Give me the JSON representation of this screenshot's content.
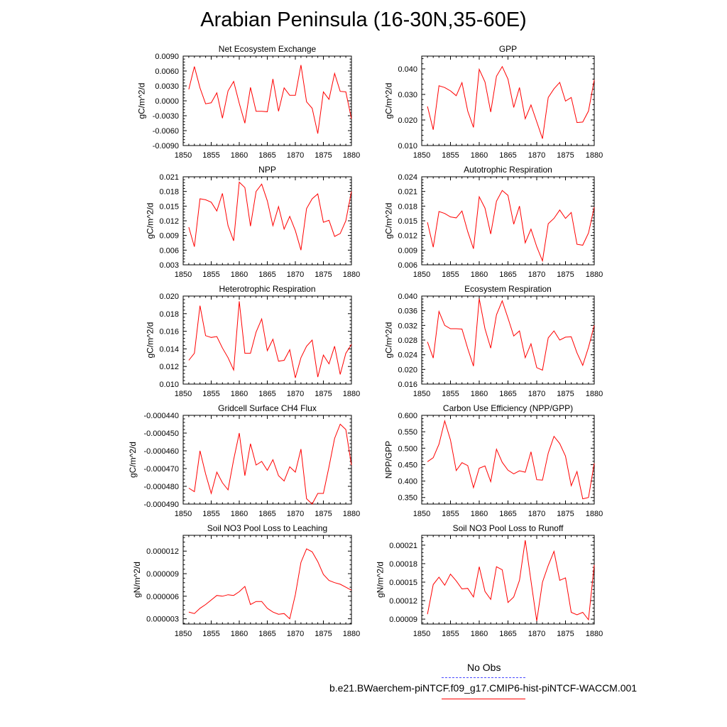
{
  "page_title": "Arabian Peninsula (16-30N,35-60E)",
  "legend": {
    "obs_label": "No Obs",
    "obs_color": "#4a4aff",
    "model_label": "b.e21.BWaerchem-piNTCF.f09_g17.CMIP6-hist-piNTCF-WACCM.001",
    "model_color": "#ff0000"
  },
  "chart_data": [
    {
      "type": "line",
      "title": "Net Ecosystem Exchange",
      "ylabel": "gC/m^2/d",
      "xlim": [
        1850,
        1880
      ],
      "ylim": [
        -0.009,
        0.009
      ],
      "xticks": [
        1850,
        1855,
        1860,
        1865,
        1870,
        1875,
        1880
      ],
      "yticks": [
        -0.009,
        -0.006,
        -0.003,
        0.0,
        0.003,
        0.006,
        0.009
      ],
      "yticklabels": [
        "-0.0090",
        "-0.0060",
        "-0.0030",
        "0.0000",
        "0.0030",
        "0.0060",
        "0.0090"
      ],
      "series": [
        {
          "color": "#ff0000",
          "x": [
            1851,
            1852,
            1853,
            1854,
            1855,
            1856,
            1857,
            1858,
            1859,
            1860,
            1861,
            1862,
            1863,
            1864,
            1865,
            1866,
            1867,
            1868,
            1869,
            1870,
            1871,
            1872,
            1873,
            1874,
            1875,
            1876,
            1877,
            1878,
            1879,
            1880
          ],
          "y": [
            0.0023,
            0.0069,
            0.0026,
            -0.0006,
            -0.0004,
            0.0016,
            -0.0035,
            0.002,
            0.0039,
            -0.0005,
            -0.0045,
            0.0027,
            -0.0021,
            -0.0021,
            -0.0022,
            0.0044,
            -0.0021,
            0.0026,
            0.0011,
            0.0011,
            0.0072,
            -0.0002,
            -0.0015,
            -0.0066,
            0.0018,
            0.0003,
            0.0055,
            0.0019,
            0.0018,
            -0.0036
          ]
        }
      ]
    },
    {
      "type": "line",
      "title": "GPP",
      "ylabel": "gC/m^2/d",
      "xlim": [
        1850,
        1880
      ],
      "ylim": [
        0.01,
        0.045
      ],
      "xticks": [
        1850,
        1855,
        1860,
        1865,
        1870,
        1875,
        1880
      ],
      "yticks": [
        0.01,
        0.02,
        0.03,
        0.04
      ],
      "yticklabels": [
        "0.010",
        "0.020",
        "0.030",
        "0.040"
      ],
      "series": [
        {
          "color": "#ff0000",
          "x": [
            1851,
            1852,
            1853,
            1854,
            1855,
            1856,
            1857,
            1858,
            1859,
            1860,
            1861,
            1862,
            1863,
            1864,
            1865,
            1866,
            1867,
            1868,
            1869,
            1870,
            1871,
            1872,
            1873,
            1874,
            1875,
            1876,
            1877,
            1878,
            1879,
            1880
          ],
          "y": [
            0.0253,
            0.0162,
            0.0334,
            0.0327,
            0.0314,
            0.0295,
            0.0346,
            0.0235,
            0.0171,
            0.0398,
            0.0349,
            0.0231,
            0.0371,
            0.0409,
            0.036,
            0.0249,
            0.0327,
            0.0205,
            0.0259,
            0.0193,
            0.0127,
            0.0288,
            0.0322,
            0.0347,
            0.0274,
            0.0288,
            0.019,
            0.0192,
            0.0235,
            0.0357
          ]
        }
      ]
    },
    {
      "type": "line",
      "title": "NPP",
      "ylabel": "gC/m^2/d",
      "xlim": [
        1850,
        1880
      ],
      "ylim": [
        0.003,
        0.021
      ],
      "xticks": [
        1850,
        1855,
        1860,
        1865,
        1870,
        1875,
        1880
      ],
      "yticks": [
        0.003,
        0.006,
        0.009,
        0.012,
        0.015,
        0.018,
        0.021
      ],
      "yticklabels": [
        "0.003",
        "0.006",
        "0.009",
        "0.012",
        "0.015",
        "0.018",
        "0.021"
      ],
      "series": [
        {
          "color": "#ff0000",
          "x": [
            1851,
            1852,
            1853,
            1854,
            1855,
            1856,
            1857,
            1858,
            1859,
            1860,
            1861,
            1862,
            1863,
            1864,
            1865,
            1866,
            1867,
            1868,
            1869,
            1870,
            1871,
            1872,
            1873,
            1874,
            1875,
            1876,
            1877,
            1878,
            1879,
            1880
          ],
          "y": [
            0.0107,
            0.0067,
            0.0165,
            0.0163,
            0.0158,
            0.014,
            0.0176,
            0.011,
            0.0079,
            0.0199,
            0.0188,
            0.0109,
            0.018,
            0.0195,
            0.0161,
            0.011,
            0.0149,
            0.0103,
            0.0129,
            0.01,
            0.006,
            0.0145,
            0.0165,
            0.0175,
            0.0117,
            0.0121,
            0.0088,
            0.0094,
            0.012,
            0.018
          ]
        }
      ]
    },
    {
      "type": "line",
      "title": "Autotrophic Respiration",
      "ylabel": "gC/m^2/d",
      "xlim": [
        1850,
        1880
      ],
      "ylim": [
        0.006,
        0.024
      ],
      "xticks": [
        1850,
        1855,
        1860,
        1865,
        1870,
        1875,
        1880
      ],
      "yticks": [
        0.006,
        0.009,
        0.012,
        0.015,
        0.018,
        0.021,
        0.024
      ],
      "yticklabels": [
        "0.006",
        "0.009",
        "0.012",
        "0.015",
        "0.018",
        "0.021",
        "0.024"
      ],
      "series": [
        {
          "color": "#ff0000",
          "x": [
            1851,
            1852,
            1853,
            1854,
            1855,
            1856,
            1857,
            1858,
            1859,
            1860,
            1861,
            1862,
            1863,
            1864,
            1865,
            1866,
            1867,
            1868,
            1869,
            1870,
            1871,
            1872,
            1873,
            1874,
            1875,
            1876,
            1877,
            1878,
            1879,
            1880
          ],
          "y": [
            0.0147,
            0.0096,
            0.0169,
            0.0165,
            0.0158,
            0.0156,
            0.017,
            0.0128,
            0.0093,
            0.0199,
            0.0176,
            0.0123,
            0.019,
            0.0212,
            0.0202,
            0.0143,
            0.018,
            0.0105,
            0.0133,
            0.0097,
            0.0068,
            0.0144,
            0.0155,
            0.0172,
            0.0155,
            0.0167,
            0.0102,
            0.01,
            0.0125,
            0.0178
          ]
        }
      ]
    },
    {
      "type": "line",
      "title": "Heterotrophic Respiration",
      "ylabel": "gC/m^2/d",
      "xlim": [
        1850,
        1880
      ],
      "ylim": [
        0.01,
        0.02
      ],
      "xticks": [
        1850,
        1855,
        1860,
        1865,
        1870,
        1875,
        1880
      ],
      "yticks": [
        0.01,
        0.012,
        0.014,
        0.016,
        0.018,
        0.02
      ],
      "yticklabels": [
        "0.010",
        "0.012",
        "0.014",
        "0.016",
        "0.018",
        "0.020"
      ],
      "series": [
        {
          "color": "#ff0000",
          "x": [
            1851,
            1852,
            1853,
            1854,
            1855,
            1856,
            1857,
            1858,
            1859,
            1860,
            1861,
            1862,
            1863,
            1864,
            1865,
            1866,
            1867,
            1868,
            1869,
            1870,
            1871,
            1872,
            1873,
            1874,
            1875,
            1876,
            1877,
            1878,
            1879,
            1880
          ],
          "y": [
            0.0127,
            0.0135,
            0.0189,
            0.0155,
            0.0153,
            0.0154,
            0.0141,
            0.013,
            0.0116,
            0.0194,
            0.0135,
            0.0135,
            0.0159,
            0.0174,
            0.0138,
            0.0151,
            0.0126,
            0.0127,
            0.0139,
            0.0107,
            0.013,
            0.0143,
            0.015,
            0.0108,
            0.0133,
            0.0123,
            0.0143,
            0.0111,
            0.0135,
            0.0145
          ]
        }
      ]
    },
    {
      "type": "line",
      "title": "Ecosystem Respiration",
      "ylabel": "gC/m^2/d",
      "xlim": [
        1850,
        1880
      ],
      "ylim": [
        0.016,
        0.04
      ],
      "xticks": [
        1850,
        1855,
        1860,
        1865,
        1870,
        1875,
        1880
      ],
      "yticks": [
        0.016,
        0.02,
        0.024,
        0.028,
        0.032,
        0.036,
        0.04
      ],
      "yticklabels": [
        "0.016",
        "0.020",
        "0.024",
        "0.028",
        "0.032",
        "0.036",
        "0.040"
      ],
      "series": [
        {
          "color": "#ff0000",
          "x": [
            1851,
            1852,
            1853,
            1854,
            1855,
            1856,
            1857,
            1858,
            1859,
            1860,
            1861,
            1862,
            1863,
            1864,
            1865,
            1866,
            1867,
            1868,
            1869,
            1870,
            1871,
            1872,
            1873,
            1874,
            1875,
            1876,
            1877,
            1878,
            1879,
            1880
          ],
          "y": [
            0.0275,
            0.0231,
            0.0358,
            0.032,
            0.0311,
            0.0311,
            0.031,
            0.0257,
            0.0209,
            0.0393,
            0.0311,
            0.0258,
            0.0349,
            0.0387,
            0.034,
            0.0291,
            0.0305,
            0.0232,
            0.027,
            0.0205,
            0.0198,
            0.0286,
            0.0305,
            0.028,
            0.0288,
            0.0289,
            0.0245,
            0.0211,
            0.026,
            0.032
          ]
        }
      ]
    },
    {
      "type": "line",
      "title": "Gridcell Surface CH4 Flux",
      "ylabel": "gC/m^2/d",
      "xlim": [
        1850,
        1880
      ],
      "ylim": [
        -0.00049,
        -0.00044
      ],
      "xticks": [
        1850,
        1855,
        1860,
        1865,
        1870,
        1875,
        1880
      ],
      "yticks": [
        -0.00049,
        -0.00048,
        -0.00047,
        -0.00046,
        -0.00045,
        -0.00044
      ],
      "yticklabels": [
        "-0.000490",
        "-0.000480",
        "-0.000470",
        "-0.000460",
        "-0.000450",
        "-0.000440"
      ],
      "series": [
        {
          "color": "#ff0000",
          "x": [
            1851,
            1852,
            1853,
            1854,
            1855,
            1856,
            1857,
            1858,
            1859,
            1860,
            1861,
            1862,
            1863,
            1864,
            1865,
            1866,
            1867,
            1868,
            1869,
            1870,
            1871,
            1872,
            1873,
            1874,
            1875,
            1876,
            1877,
            1878,
            1879,
            1880
          ],
          "y": [
            -0.000481,
            -0.000483,
            -0.00046,
            -0.000473,
            -0.000484,
            -0.000472,
            -0.000478,
            -0.000482,
            -0.000465,
            -0.00045,
            -0.000474,
            -0.000456,
            -0.000468,
            -0.000466,
            -0.000471,
            -0.000465,
            -0.000474,
            -0.000477,
            -0.000469,
            -0.000472,
            -0.000459,
            -0.000487,
            -0.00049,
            -0.000484,
            -0.000484,
            -0.000469,
            -0.000453,
            -0.000445,
            -0.000448,
            -0.000468
          ]
        }
      ]
    },
    {
      "type": "line",
      "title": "Carbon Use Efficiency (NPP/GPP)",
      "ylabel": "NPP/GPP",
      "xlim": [
        1850,
        1880
      ],
      "ylim": [
        0.33,
        0.6
      ],
      "xticks": [
        1850,
        1855,
        1860,
        1865,
        1870,
        1875,
        1880
      ],
      "yticks": [
        0.35,
        0.4,
        0.45,
        0.5,
        0.55,
        0.6
      ],
      "yticklabels": [
        "0.350",
        "0.400",
        "0.450",
        "0.500",
        "0.550",
        "0.600"
      ],
      "series": [
        {
          "color": "#ff0000",
          "x": [
            1851,
            1852,
            1853,
            1854,
            1855,
            1856,
            1857,
            1858,
            1859,
            1860,
            1861,
            1862,
            1863,
            1864,
            1865,
            1866,
            1867,
            1868,
            1869,
            1870,
            1871,
            1872,
            1873,
            1874,
            1875,
            1876,
            1877,
            1878,
            1879,
            1880
          ],
          "y": [
            0.459,
            0.471,
            0.512,
            0.583,
            0.525,
            0.432,
            0.456,
            0.447,
            0.38,
            0.439,
            0.446,
            0.398,
            0.497,
            0.457,
            0.433,
            0.422,
            0.431,
            0.427,
            0.489,
            0.404,
            0.403,
            0.485,
            0.536,
            0.514,
            0.476,
            0.386,
            0.429,
            0.346,
            0.35,
            0.454
          ]
        }
      ]
    },
    {
      "type": "line",
      "title": "Soil NO3 Pool Loss to Leaching",
      "ylabel": "gN/m^2/d",
      "xlim": [
        1850,
        1880
      ],
      "ylim": [
        2.3e-06,
        1.41e-05
      ],
      "xticks": [
        1850,
        1855,
        1860,
        1865,
        1870,
        1875,
        1880
      ],
      "yticks": [
        3e-06,
        6e-06,
        9e-06,
        1.2e-05
      ],
      "yticklabels": [
        "0.000003",
        "0.000006",
        "0.000009",
        "0.000012"
      ],
      "series": [
        {
          "color": "#ff0000",
          "x": [
            1851,
            1852,
            1853,
            1854,
            1855,
            1856,
            1857,
            1858,
            1859,
            1860,
            1861,
            1862,
            1863,
            1864,
            1865,
            1866,
            1867,
            1868,
            1869,
            1870,
            1871,
            1872,
            1873,
            1874,
            1875,
            1876,
            1877,
            1878,
            1879,
            1880
          ],
          "y": [
            3.9e-06,
            3.7e-06,
            4.4e-06,
            4.9e-06,
            5.5e-06,
            6.1e-06,
            6e-06,
            6.2e-06,
            6.1e-06,
            6.6e-06,
            7.3e-06,
            4.9e-06,
            5.3e-06,
            5.3e-06,
            4.4e-06,
            3.9e-06,
            3.6e-06,
            3.7e-06,
            3e-06,
            6.2e-06,
            1.05e-05,
            1.23e-05,
            1.19e-05,
            1.06e-05,
            8.9e-06,
            8.1e-06,
            7.8e-06,
            7.6e-06,
            7.2e-06,
            6.8e-06
          ]
        }
      ]
    },
    {
      "type": "line",
      "title": "Soil NO3 Pool Loss to Runoff",
      "ylabel": "gN/m^2/d",
      "xlim": [
        1850,
        1880
      ],
      "ylim": [
        8.2e-05,
        0.000226
      ],
      "xticks": [
        1850,
        1855,
        1860,
        1865,
        1870,
        1875,
        1880
      ],
      "yticks": [
        9e-05,
        0.00012,
        0.00015,
        0.00018,
        0.00021
      ],
      "yticklabels": [
        "0.00009",
        "0.00012",
        "0.00015",
        "0.00018",
        "0.00021"
      ],
      "series": [
        {
          "color": "#ff0000",
          "x": [
            1851,
            1852,
            1853,
            1854,
            1855,
            1856,
            1857,
            1858,
            1859,
            1860,
            1861,
            1862,
            1863,
            1864,
            1865,
            1866,
            1867,
            1868,
            1869,
            1870,
            1871,
            1872,
            1873,
            1874,
            1875,
            1876,
            1877,
            1878,
            1879,
            1880
          ],
          "y": [
            9.8e-05,
            0.000146,
            0.000158,
            0.000145,
            0.000163,
            0.000152,
            0.000139,
            0.00014,
            0.000126,
            0.000175,
            0.000135,
            0.000122,
            0.000175,
            0.00017,
            0.000117,
            0.000126,
            0.000153,
            0.000218,
            0.000152,
            8.7e-05,
            0.00015,
            0.000177,
            0.0002,
            0.000153,
            0.000157,
            0.000101,
            9.7e-05,
            0.000101,
            8.9e-05,
            0.000178
          ]
        }
      ]
    }
  ]
}
